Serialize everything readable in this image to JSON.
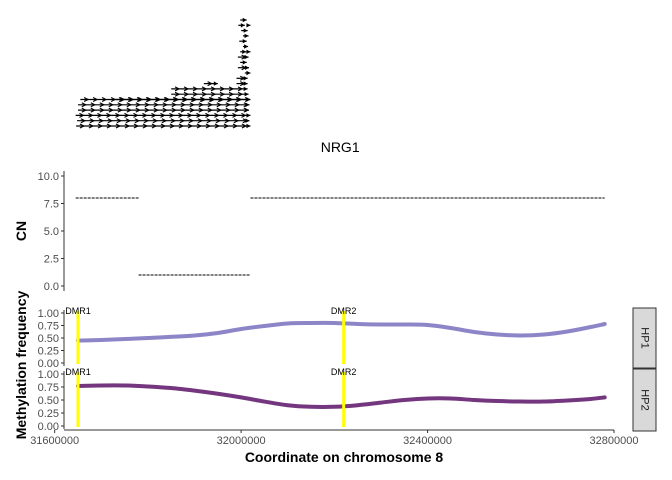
{
  "chart_data": [
    {
      "type": "gene_track",
      "gene_label": "NRG1",
      "transcripts": [
        {
          "start": 31998000,
          "end": 32012000,
          "row": 0
        },
        {
          "start": 31994000,
          "end": 32008000,
          "row": 1
        },
        {
          "start": 32012000,
          "end": 32020000,
          "row": 1
        },
        {
          "start": 32000000,
          "end": 32014000,
          "row": 2
        },
        {
          "start": 32004000,
          "end": 32016000,
          "row": 3
        },
        {
          "start": 31996000,
          "end": 32012000,
          "row": 4
        },
        {
          "start": 32004000,
          "end": 32015000,
          "row": 5
        },
        {
          "start": 31998000,
          "end": 32011000,
          "row": 6
        },
        {
          "start": 32012000,
          "end": 32020000,
          "row": 6
        },
        {
          "start": 31993000,
          "end": 32016000,
          "row": 7
        },
        {
          "start": 31998000,
          "end": 32012000,
          "row": 8
        },
        {
          "start": 31993000,
          "end": 32017000,
          "row": 9
        },
        {
          "start": 32008000,
          "end": 32020000,
          "row": 10
        },
        {
          "start": 31990000,
          "end": 32014000,
          "row": 11
        },
        {
          "start": 31990000,
          "end": 32014000,
          "row": 12
        },
        {
          "start": 31920000,
          "end": 31950000,
          "row": 12
        },
        {
          "start": 31850000,
          "end": 32014000,
          "row": 13
        },
        {
          "start": 31850000,
          "end": 32016000,
          "row": 14
        },
        {
          "start": 31655000,
          "end": 32019000,
          "row": 15
        },
        {
          "start": 31730000,
          "end": 32020000,
          "row": 15
        },
        {
          "start": 31650000,
          "end": 32018000,
          "row": 16
        },
        {
          "start": 31650000,
          "end": 32017000,
          "row": 17
        },
        {
          "start": 31645000,
          "end": 32020000,
          "row": 18
        },
        {
          "start": 31648000,
          "end": 32018000,
          "row": 19
        },
        {
          "start": 31646000,
          "end": 32020000,
          "row": 20
        }
      ]
    },
    {
      "type": "segment",
      "ylabel": "CN",
      "ylim": [
        0,
        10
      ],
      "yticks": [
        "0.0",
        "2.5",
        "5.0",
        "7.5",
        "10.0"
      ],
      "segments": [
        {
          "start": 31645000,
          "end": 31780000,
          "value": 8
        },
        {
          "start": 31780000,
          "end": 32020000,
          "value": 1
        },
        {
          "start": 32020000,
          "end": 32780000,
          "value": 8
        }
      ]
    },
    {
      "type": "line",
      "ylabel": "Methylation frequency",
      "xlabel": "Coordinate on chromosome 8",
      "xlim": [
        31620000,
        32800000
      ],
      "xticks": [
        "31600000",
        "32000000",
        "32400000",
        "32800000"
      ],
      "ylim": [
        0,
        1
      ],
      "yticks": [
        "0.00",
        "0.25",
        "0.50",
        "0.75",
        "1.00"
      ],
      "annotations": [
        {
          "label": "DMR1",
          "x": 31650000,
          "color": "#ffff00"
        },
        {
          "label": "DMR2",
          "x": 32220000,
          "color": "#ffff00"
        }
      ],
      "series": [
        {
          "name": "HP1",
          "color": "#8c86c8",
          "x": [
            31650000,
            31700000,
            31800000,
            31900000,
            31950000,
            32000000,
            32050000,
            32100000,
            32150000,
            32200000,
            32250000,
            32300000,
            32350000,
            32400000,
            32450000,
            32500000,
            32550000,
            32600000,
            32650000,
            32700000,
            32750000,
            32780000
          ],
          "y": [
            0.45,
            0.46,
            0.5,
            0.55,
            0.6,
            0.68,
            0.74,
            0.79,
            0.8,
            0.8,
            0.78,
            0.77,
            0.77,
            0.76,
            0.7,
            0.62,
            0.57,
            0.55,
            0.57,
            0.63,
            0.72,
            0.78
          ]
        },
        {
          "name": "HP2",
          "color": "#74377f",
          "x": [
            31650000,
            31700000,
            31750000,
            31800000,
            31850000,
            31900000,
            31950000,
            32000000,
            32050000,
            32100000,
            32150000,
            32200000,
            32250000,
            32300000,
            32350000,
            32400000,
            32450000,
            32500000,
            32550000,
            32600000,
            32650000,
            32700000,
            32750000,
            32780000
          ],
          "y": [
            0.77,
            0.78,
            0.78,
            0.76,
            0.73,
            0.68,
            0.62,
            0.55,
            0.47,
            0.4,
            0.37,
            0.37,
            0.4,
            0.45,
            0.5,
            0.53,
            0.53,
            0.5,
            0.48,
            0.47,
            0.47,
            0.49,
            0.52,
            0.55
          ]
        }
      ]
    }
  ]
}
